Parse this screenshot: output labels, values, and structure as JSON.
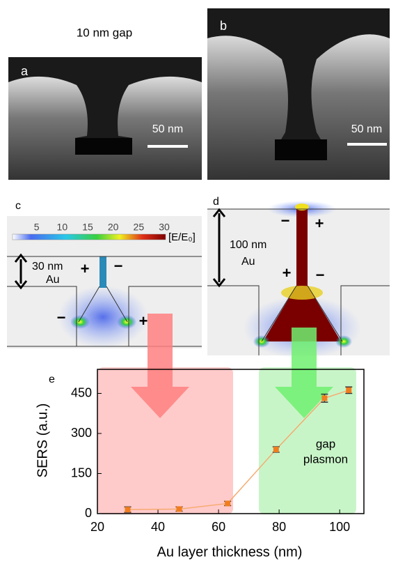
{
  "panels": {
    "a": {
      "letter": "a",
      "caption": "10 nm gap",
      "scale": "50 nm"
    },
    "b": {
      "letter": "b",
      "scale": "50 nm"
    },
    "c": {
      "letter": "c",
      "thickness": "30 nm",
      "material": "Au",
      "signs": [
        "+",
        "−",
        "−",
        "+"
      ],
      "colorbar": {
        "ticks": [
          5,
          10,
          15,
          20,
          25,
          30
        ],
        "unit": "[E/E₀]"
      }
    },
    "d": {
      "letter": "d",
      "thickness": "100 nm",
      "material": "Au",
      "signs": [
        "−",
        "+",
        "+",
        "−"
      ]
    },
    "e": {
      "letter": "e",
      "region_label": [
        "gap",
        "plasmon"
      ]
    }
  },
  "chart_data": {
    "type": "scatter",
    "xlabel": "Au layer thickness (nm)",
    "ylabel": "SERS (a.u.)",
    "x": [
      30,
      47,
      63,
      79,
      95,
      103
    ],
    "values": [
      15,
      17,
      38,
      240,
      432,
      462
    ],
    "errors": [
      10,
      8,
      8,
      10,
      15,
      12
    ],
    "color": "#f07d1f",
    "line_color": "#f5ab70",
    "xlim": [
      20,
      108
    ],
    "xticks": [
      20,
      40,
      60,
      80,
      100
    ],
    "ylim": [
      0,
      540
    ],
    "yticks": [
      0,
      150,
      300,
      450
    ]
  }
}
